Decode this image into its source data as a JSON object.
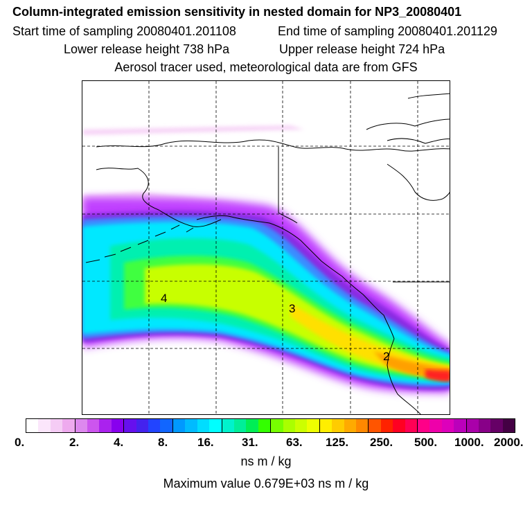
{
  "header": {
    "title": "Column-integrated emission sensitivity in nested domain for NP3_20080401",
    "start_label": "Start time of sampling 20080401.201108",
    "end_label": "End time of sampling 20080401.201129",
    "lower_label": "Lower release height  738 hPa",
    "upper_label": "Upper release height  724 hPa",
    "tracer_line": "Aerosol tracer used, meteorological data are from GFS"
  },
  "map": {
    "markers": [
      "4",
      "3",
      "2"
    ],
    "plume_colors": {
      "fringe_pink": "#f4c8f4",
      "magenta": "#c040ff",
      "purple": "#8a2be2",
      "blue": "#3a8cff",
      "cyan": "#00e8ff",
      "cyan_green": "#00f0b0",
      "green": "#40ff40",
      "yellow_green": "#c8ff00",
      "yellow": "#ffe000",
      "orange": "#ffa000",
      "red": "#ff2020"
    }
  },
  "colorbar": {
    "colors": [
      "#ffffff",
      "#fbe6fb",
      "#f5ccf5",
      "#eeaaee",
      "#dd88ee",
      "#cc55ee",
      "#aa22ee",
      "#8800ee",
      "#6610ee",
      "#4422ee",
      "#2244ff",
      "#1166ff",
      "#0099ff",
      "#00bbff",
      "#00ddff",
      "#00ffff",
      "#00f2cc",
      "#00ee99",
      "#00ee55",
      "#33ff00",
      "#77ff00",
      "#aaff00",
      "#ccff00",
      "#eeff00",
      "#ffee00",
      "#ffcc00",
      "#ffaa00",
      "#ff8800",
      "#ff5500",
      "#ff2200",
      "#ff0022",
      "#ff0055",
      "#ff0088",
      "#ee00aa",
      "#dd00bb",
      "#bb00bb",
      "#aa00aa",
      "#880088",
      "#660066",
      "#440044"
    ],
    "tick_labels": [
      "0.",
      "2.",
      "4.",
      "8.",
      "16.",
      "31.",
      "63.",
      "125.",
      "250.",
      "500.",
      "1000.",
      "2000."
    ],
    "units": "ns m / kg",
    "max_value_text": "Maximum value  0.679E+03 ns m / kg"
  }
}
